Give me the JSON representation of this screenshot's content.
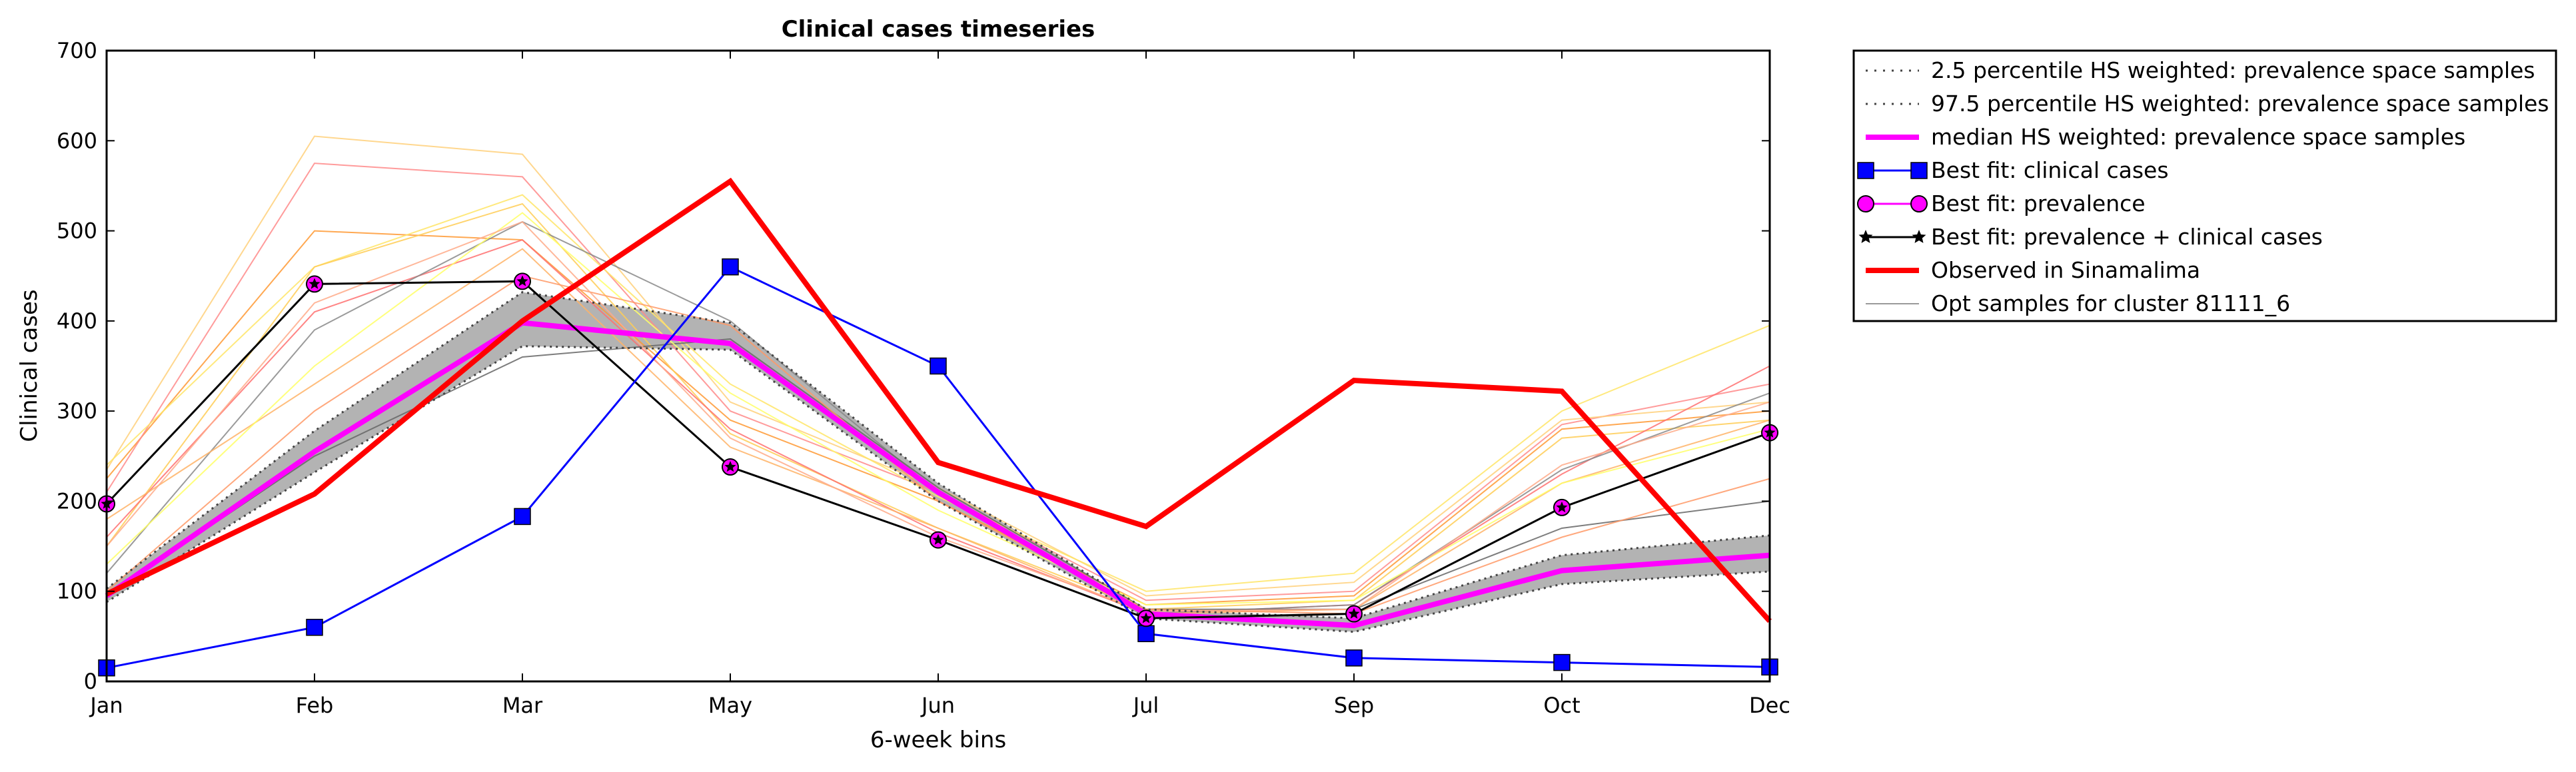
{
  "chart_data": {
    "type": "line",
    "title": "Clinical cases timeseries",
    "xlabel": "6-week bins",
    "ylabel": "Clinical cases",
    "categories": [
      "Jan",
      "Feb",
      "Mar",
      "May",
      "Jun",
      "Jul",
      "Sep",
      "Oct",
      "Dec"
    ],
    "ylim": [
      0,
      700
    ],
    "yticks": [
      "0",
      "100",
      "200",
      "300",
      "400",
      "500",
      "600",
      "700"
    ],
    "legend_position": "outside-right-top",
    "band": {
      "lower": [
        88,
        232,
        372,
        368,
        200,
        70,
        55,
        108,
        122
      ],
      "upper": [
        103,
        278,
        432,
        398,
        220,
        80,
        70,
        140,
        162
      ],
      "color": "#b3b3b3"
    },
    "opt_samples": [
      {
        "color": "#ff9933",
        "values": [
          225,
          500,
          490,
          290,
          200,
          85,
          95,
          280,
          300
        ]
      },
      {
        "color": "#ff8a8a",
        "values": [
          210,
          575,
          560,
          300,
          210,
          90,
          100,
          285,
          330
        ]
      },
      {
        "color": "#ffd07a",
        "values": [
          235,
          605,
          585,
          310,
          215,
          95,
          110,
          290,
          310
        ]
      },
      {
        "color": "#ffe566",
        "values": [
          240,
          460,
          540,
          330,
          205,
          100,
          120,
          300,
          395
        ]
      },
      {
        "color": "#ffcc55",
        "values": [
          150,
          460,
          530,
          275,
          170,
          80,
          90,
          270,
          290
        ]
      },
      {
        "color": "#ff7070",
        "values": [
          160,
          410,
          490,
          280,
          165,
          75,
          85,
          230,
          350
        ]
      },
      {
        "color": "#888888",
        "values": [
          120,
          390,
          510,
          400,
          210,
          75,
          85,
          235,
          320
        ]
      },
      {
        "color": "#666666",
        "values": [
          95,
          250,
          360,
          380,
          215,
          80,
          80,
          170,
          200
        ]
      },
      {
        "color": "#ffb366",
        "values": [
          180,
          330,
          480,
          260,
          170,
          75,
          80,
          220,
          290
        ]
      },
      {
        "color": "#ffff66",
        "values": [
          130,
          350,
          520,
          320,
          190,
          85,
          90,
          220,
          280
        ]
      },
      {
        "color": "#ff9966",
        "values": [
          100,
          300,
          450,
          395,
          200,
          80,
          75,
          160,
          225
        ]
      },
      {
        "color": "#ffaa88",
        "values": [
          150,
          420,
          510,
          270,
          160,
          78,
          80,
          240,
          310
        ]
      }
    ],
    "series": [
      {
        "name": "2.5 percentile HS weighted: prevalence space samples",
        "color": "#444444",
        "style": "dotted",
        "values": [
          88,
          232,
          372,
          368,
          200,
          70,
          55,
          108,
          122
        ]
      },
      {
        "name": "97.5 percentile HS weighted: prevalence space samples",
        "color": "#444444",
        "style": "dotted",
        "values": [
          103,
          278,
          432,
          398,
          220,
          80,
          70,
          140,
          162
        ]
      },
      {
        "name": "median HS weighted: prevalence space samples",
        "color": "#ff00ff",
        "style": "solid-thick",
        "values": [
          95,
          255,
          398,
          375,
          210,
          75,
          62,
          123,
          140
        ]
      },
      {
        "name": "Best fit: clinical cases",
        "color": "#0000ff",
        "style": "square-marker",
        "values": [
          15,
          60,
          183,
          460,
          350,
          53,
          26,
          21,
          16
        ]
      },
      {
        "name": "Best fit: prevalence",
        "color": "#ff00ff",
        "style": "circle-marker",
        "values": [
          197,
          441,
          444,
          238,
          157,
          70,
          75,
          193,
          276
        ]
      },
      {
        "name": "Best fit: prevalence + clinical cases",
        "color": "#000000",
        "style": "star-marker",
        "values": [
          197,
          441,
          444,
          238,
          157,
          70,
          75,
          193,
          276
        ]
      },
      {
        "name": "Observed in Sinamalima",
        "color": "#ff0000",
        "style": "solid-thick",
        "values": [
          97,
          208,
          400,
          555,
          243,
          172,
          334,
          322,
          67
        ]
      },
      {
        "name": "Opt samples for cluster 81111_6",
        "color": "#999999",
        "style": "thin"
      }
    ]
  }
}
